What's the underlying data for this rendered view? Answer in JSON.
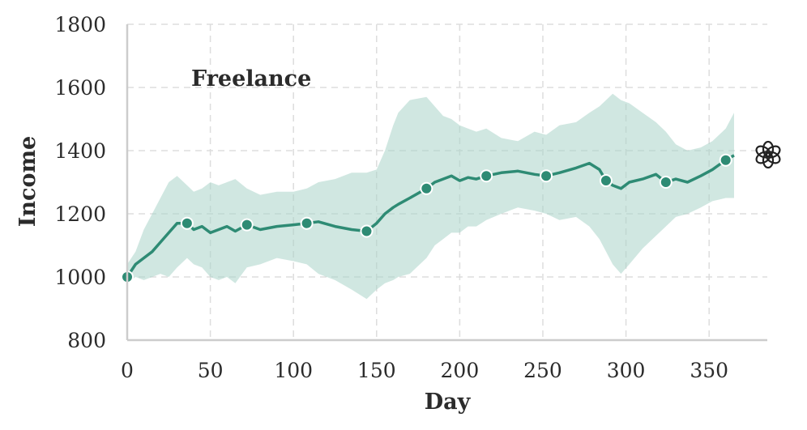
{
  "chart_data": {
    "type": "line",
    "title": "Freelance",
    "xlabel": "Day",
    "ylabel": "Income",
    "xlim": [
      0,
      385
    ],
    "ylim": [
      800,
      1800
    ],
    "xticks": [
      0,
      50,
      100,
      150,
      200,
      250,
      300,
      350
    ],
    "yticks": [
      800,
      1000,
      1200,
      1400,
      1600,
      1800
    ],
    "grid": true,
    "colors": {
      "line": "#2e8b74",
      "band": "#a9d3c9",
      "grid": "#dddddd",
      "axis": "#cccccc"
    },
    "series": [
      {
        "values_note_x": [
          0,
          5,
          10,
          15,
          20,
          25,
          30,
          36,
          40,
          45,
          50,
          55,
          60,
          65,
          72,
          80,
          90,
          100,
          108,
          115,
          125,
          135,
          144,
          150,
          155,
          160,
          163,
          170,
          180,
          185,
          190,
          195,
          200,
          205,
          210,
          216,
          225,
          235,
          245,
          252,
          260,
          270,
          278,
          284,
          288,
          292,
          297,
          302,
          310,
          318,
          324,
          330,
          337,
          345,
          352,
          360,
          365
        ],
        "x": [
          0,
          5,
          10,
          15,
          20,
          25,
          30,
          36,
          40,
          45,
          50,
          55,
          60,
          65,
          72,
          80,
          90,
          100,
          108,
          115,
          125,
          135,
          144,
          150,
          155,
          160,
          163,
          170,
          180,
          185,
          190,
          195,
          200,
          205,
          210,
          216,
          225,
          235,
          245,
          252,
          260,
          270,
          278,
          284,
          288,
          292,
          297,
          302,
          310,
          318,
          324,
          330,
          337,
          345,
          352,
          360,
          365
        ],
        "y": [
          1000,
          1040,
          1060,
          1080,
          1110,
          1140,
          1170,
          1170,
          1150,
          1160,
          1140,
          1150,
          1160,
          1145,
          1165,
          1150,
          1160,
          1165,
          1170,
          1175,
          1160,
          1150,
          1145,
          1170,
          1200,
          1220,
          1230,
          1250,
          1280,
          1300,
          1310,
          1320,
          1305,
          1315,
          1310,
          1320,
          1330,
          1335,
          1325,
          1320,
          1330,
          1345,
          1360,
          1340,
          1305,
          1290,
          1280,
          1300,
          1310,
          1325,
          1300,
          1310,
          1300,
          1320,
          1340,
          1370,
          1385
        ],
        "upper": [
          1040,
          1080,
          1150,
          1200,
          1250,
          1300,
          1320,
          1290,
          1270,
          1280,
          1300,
          1290,
          1300,
          1310,
          1280,
          1260,
          1270,
          1270,
          1280,
          1300,
          1310,
          1330,
          1330,
          1340,
          1400,
          1480,
          1520,
          1560,
          1570,
          1540,
          1510,
          1500,
          1480,
          1470,
          1460,
          1470,
          1440,
          1430,
          1460,
          1450,
          1480,
          1490,
          1520,
          1540,
          1560,
          1580,
          1560,
          1550,
          1520,
          1490,
          1460,
          1420,
          1400,
          1410,
          1430,
          1470,
          1520
        ],
        "lower": [
          980,
          1000,
          990,
          1000,
          1010,
          1000,
          1030,
          1060,
          1040,
          1030,
          1000,
          990,
          1000,
          980,
          1030,
          1040,
          1060,
          1050,
          1040,
          1010,
          990,
          960,
          930,
          960,
          980,
          990,
          1000,
          1010,
          1060,
          1100,
          1120,
          1140,
          1140,
          1160,
          1160,
          1180,
          1200,
          1220,
          1210,
          1200,
          1180,
          1190,
          1160,
          1120,
          1080,
          1040,
          1010,
          1040,
          1090,
          1130,
          1160,
          1190,
          1200,
          1220,
          1240,
          1250,
          1250
        ],
        "markers_x": [
          0,
          36,
          72,
          108,
          144,
          180,
          216,
          252,
          288,
          324,
          360
        ],
        "markers_y": [
          1000,
          1170,
          1165,
          1170,
          1145,
          1280,
          1320,
          1320,
          1305,
          1300,
          1370
        ]
      }
    ]
  },
  "logo": {
    "name": "openai-logo-icon"
  }
}
